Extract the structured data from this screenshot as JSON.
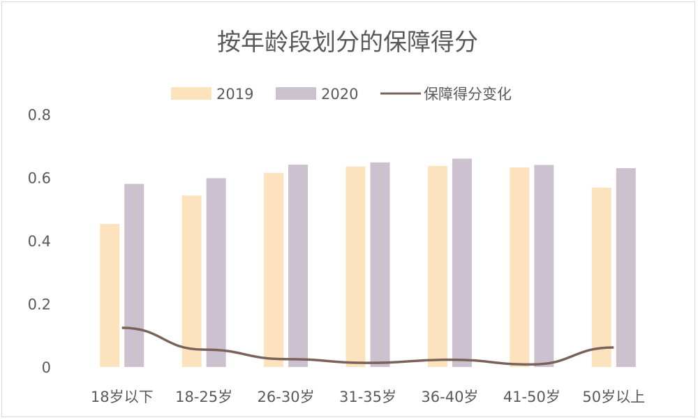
{
  "chart_data": {
    "type": "bar",
    "title": "按年龄段划分的保障得分",
    "categories": [
      "18岁以下",
      "18-25岁",
      "26-30岁",
      "31-35岁",
      "36-40岁",
      "41-50岁",
      "50岁以上"
    ],
    "series": [
      {
        "name": "2019",
        "kind": "bar",
        "color": "#fde3bd",
        "values": [
          0.453,
          0.543,
          0.615,
          0.635,
          0.637,
          0.632,
          0.568
        ]
      },
      {
        "name": "2020",
        "kind": "bar",
        "color": "#cbc1cf",
        "values": [
          0.58,
          0.598,
          0.641,
          0.648,
          0.66,
          0.64,
          0.63
        ]
      },
      {
        "name": "保障得分变化",
        "kind": "line",
        "color": "#7a625a",
        "values": [
          0.124,
          0.055,
          0.025,
          0.013,
          0.023,
          0.008,
          0.062
        ]
      }
    ],
    "yticks": [
      "0",
      "0.2",
      "0.4",
      "0.6",
      "0.8"
    ],
    "ylim": [
      0,
      0.8
    ],
    "grid": false,
    "legend_position": "top"
  }
}
